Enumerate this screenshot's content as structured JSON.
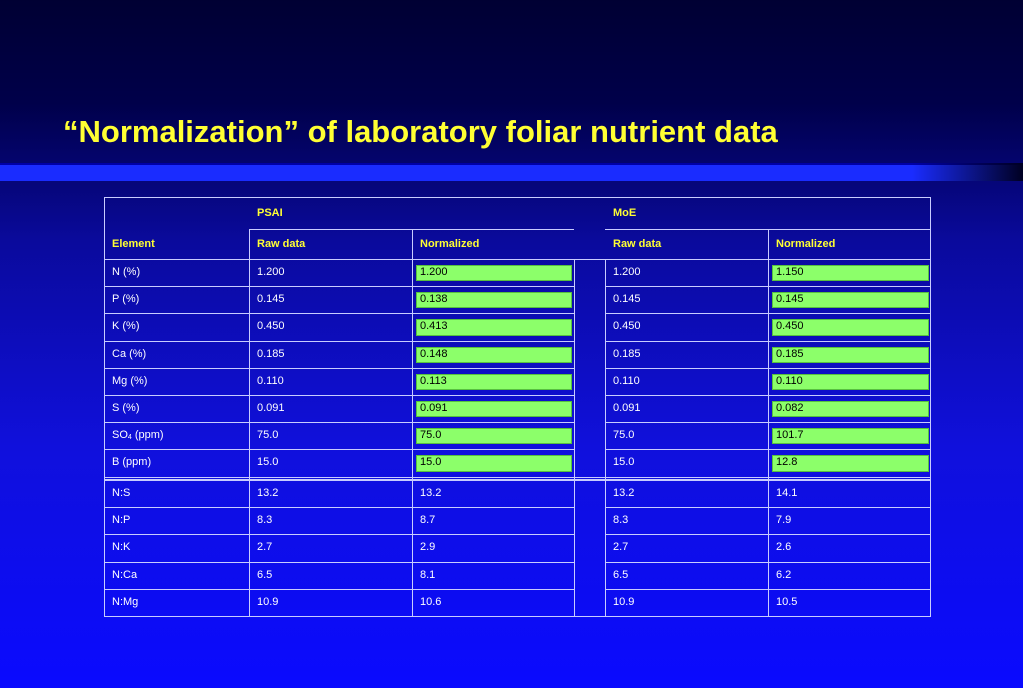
{
  "slide": {
    "title": "“Normalization” of laboratory foliar nutrient data"
  },
  "table": {
    "group_headers": {
      "psai": "PSAI",
      "moe": "MoE"
    },
    "column_headers": {
      "element": "Element",
      "psai_raw": "Raw data",
      "psai_norm": "Normalized",
      "moe_raw": "Raw data",
      "moe_norm": "Normalized"
    },
    "nutrient_rows": [
      {
        "element": "N (%)",
        "psai_raw": "1.200",
        "psai_norm": "1.200",
        "moe_raw": "1.200",
        "moe_norm": "1.150"
      },
      {
        "element": "P (%)",
        "psai_raw": "0.145",
        "psai_norm": "0.138",
        "moe_raw": "0.145",
        "moe_norm": "0.145"
      },
      {
        "element": "K (%)",
        "psai_raw": "0.450",
        "psai_norm": "0.413",
        "moe_raw": "0.450",
        "moe_norm": "0.450"
      },
      {
        "element": "Ca (%)",
        "psai_raw": "0.185",
        "psai_norm": "0.148",
        "moe_raw": "0.185",
        "moe_norm": "0.185"
      },
      {
        "element": "Mg (%)",
        "psai_raw": "0.110",
        "psai_norm": "0.113",
        "moe_raw": "0.110",
        "moe_norm": "0.110"
      },
      {
        "element": "S (%)",
        "psai_raw": "0.091",
        "psai_norm": "0.091",
        "moe_raw": "0.091",
        "moe_norm": "0.082"
      },
      {
        "element_main": "SO",
        "element_sub": "4",
        "element_rest": " (ppm)",
        "psai_raw": "75.0",
        "psai_norm": "75.0",
        "moe_raw": "75.0",
        "moe_norm": "101.7"
      },
      {
        "element": "B (ppm)",
        "psai_raw": "15.0",
        "psai_norm": "15.0",
        "moe_raw": "15.0",
        "moe_norm": "12.8"
      }
    ],
    "ratio_rows": [
      {
        "element": "N:S",
        "psai_raw": "13.2",
        "psai_norm": "13.2",
        "moe_raw": "13.2",
        "moe_norm": "14.1"
      },
      {
        "element": "N:P",
        "psai_raw": "8.3",
        "psai_norm": "8.7",
        "moe_raw": "8.3",
        "moe_norm": "7.9"
      },
      {
        "element": "N:K",
        "psai_raw": "2.7",
        "psai_norm": "2.9",
        "moe_raw": "2.7",
        "moe_norm": "2.6"
      },
      {
        "element": "N:Ca",
        "psai_raw": "6.5",
        "psai_norm": "8.1",
        "moe_raw": "6.5",
        "moe_norm": "6.2"
      },
      {
        "element": "N:Mg",
        "psai_raw": "10.9",
        "psai_norm": "10.6",
        "moe_raw": "10.9",
        "moe_norm": "10.5"
      }
    ],
    "colors": {
      "header_text": "#ffff33",
      "normalized_highlight": "#8cff6a",
      "cell_text": "#ffffff"
    }
  }
}
